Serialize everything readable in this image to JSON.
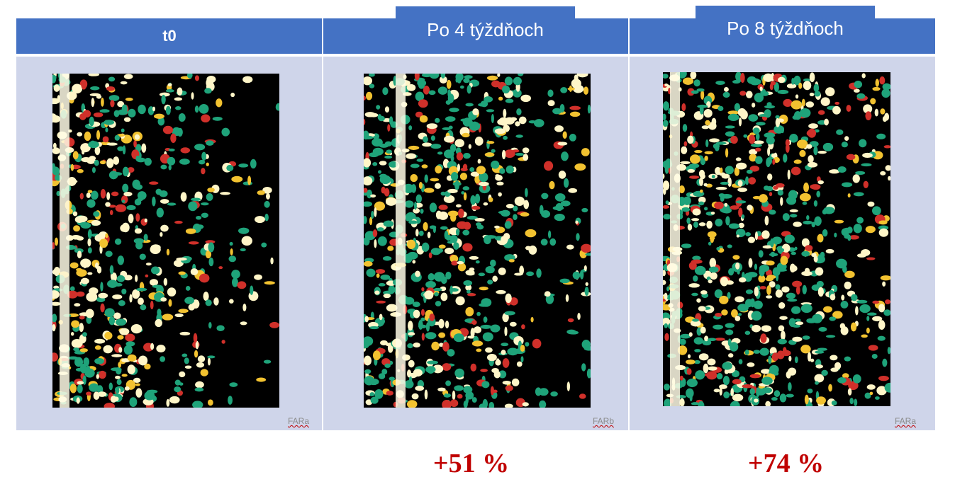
{
  "panels": [
    {
      "header": "t0",
      "image_label": "FARa"
    },
    {
      "header": "Po 4 týždňoch",
      "image_label": "FARb",
      "change": "+51 %"
    },
    {
      "header": "Po 8 týždňoch",
      "image_label": "FARa",
      "change": "+74 %"
    }
  ]
}
